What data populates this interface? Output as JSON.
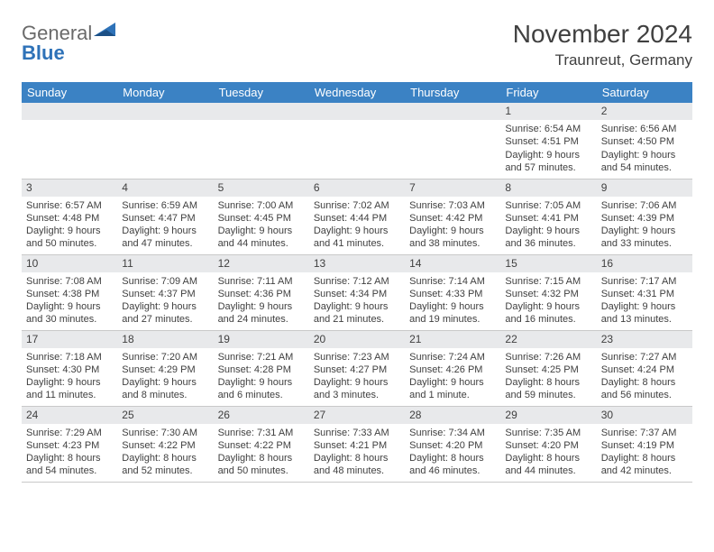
{
  "logo": {
    "text1": "General",
    "text2": "Blue"
  },
  "title": "November 2024",
  "subtitle": "Traunreut, Germany",
  "colors": {
    "header_bg": "#3b82c4",
    "header_fg": "#ffffff",
    "daynum_bg": "#e8e9eb",
    "border": "#c9c9c9",
    "text": "#404040",
    "logo_gray": "#6a6a6a",
    "logo_blue": "#2e72b8",
    "page_bg": "#ffffff"
  },
  "weekday_labels": [
    "Sunday",
    "Monday",
    "Tuesday",
    "Wednesday",
    "Thursday",
    "Friday",
    "Saturday"
  ],
  "weeks": [
    [
      null,
      null,
      null,
      null,
      null,
      {
        "n": "1",
        "sr": "Sunrise: 6:54 AM",
        "ss": "Sunset: 4:51 PM",
        "d1": "Daylight: 9 hours",
        "d2": "and 57 minutes."
      },
      {
        "n": "2",
        "sr": "Sunrise: 6:56 AM",
        "ss": "Sunset: 4:50 PM",
        "d1": "Daylight: 9 hours",
        "d2": "and 54 minutes."
      }
    ],
    [
      {
        "n": "3",
        "sr": "Sunrise: 6:57 AM",
        "ss": "Sunset: 4:48 PM",
        "d1": "Daylight: 9 hours",
        "d2": "and 50 minutes."
      },
      {
        "n": "4",
        "sr": "Sunrise: 6:59 AM",
        "ss": "Sunset: 4:47 PM",
        "d1": "Daylight: 9 hours",
        "d2": "and 47 minutes."
      },
      {
        "n": "5",
        "sr": "Sunrise: 7:00 AM",
        "ss": "Sunset: 4:45 PM",
        "d1": "Daylight: 9 hours",
        "d2": "and 44 minutes."
      },
      {
        "n": "6",
        "sr": "Sunrise: 7:02 AM",
        "ss": "Sunset: 4:44 PM",
        "d1": "Daylight: 9 hours",
        "d2": "and 41 minutes."
      },
      {
        "n": "7",
        "sr": "Sunrise: 7:03 AM",
        "ss": "Sunset: 4:42 PM",
        "d1": "Daylight: 9 hours",
        "d2": "and 38 minutes."
      },
      {
        "n": "8",
        "sr": "Sunrise: 7:05 AM",
        "ss": "Sunset: 4:41 PM",
        "d1": "Daylight: 9 hours",
        "d2": "and 36 minutes."
      },
      {
        "n": "9",
        "sr": "Sunrise: 7:06 AM",
        "ss": "Sunset: 4:39 PM",
        "d1": "Daylight: 9 hours",
        "d2": "and 33 minutes."
      }
    ],
    [
      {
        "n": "10",
        "sr": "Sunrise: 7:08 AM",
        "ss": "Sunset: 4:38 PM",
        "d1": "Daylight: 9 hours",
        "d2": "and 30 minutes."
      },
      {
        "n": "11",
        "sr": "Sunrise: 7:09 AM",
        "ss": "Sunset: 4:37 PM",
        "d1": "Daylight: 9 hours",
        "d2": "and 27 minutes."
      },
      {
        "n": "12",
        "sr": "Sunrise: 7:11 AM",
        "ss": "Sunset: 4:36 PM",
        "d1": "Daylight: 9 hours",
        "d2": "and 24 minutes."
      },
      {
        "n": "13",
        "sr": "Sunrise: 7:12 AM",
        "ss": "Sunset: 4:34 PM",
        "d1": "Daylight: 9 hours",
        "d2": "and 21 minutes."
      },
      {
        "n": "14",
        "sr": "Sunrise: 7:14 AM",
        "ss": "Sunset: 4:33 PM",
        "d1": "Daylight: 9 hours",
        "d2": "and 19 minutes."
      },
      {
        "n": "15",
        "sr": "Sunrise: 7:15 AM",
        "ss": "Sunset: 4:32 PM",
        "d1": "Daylight: 9 hours",
        "d2": "and 16 minutes."
      },
      {
        "n": "16",
        "sr": "Sunrise: 7:17 AM",
        "ss": "Sunset: 4:31 PM",
        "d1": "Daylight: 9 hours",
        "d2": "and 13 minutes."
      }
    ],
    [
      {
        "n": "17",
        "sr": "Sunrise: 7:18 AM",
        "ss": "Sunset: 4:30 PM",
        "d1": "Daylight: 9 hours",
        "d2": "and 11 minutes."
      },
      {
        "n": "18",
        "sr": "Sunrise: 7:20 AM",
        "ss": "Sunset: 4:29 PM",
        "d1": "Daylight: 9 hours",
        "d2": "and 8 minutes."
      },
      {
        "n": "19",
        "sr": "Sunrise: 7:21 AM",
        "ss": "Sunset: 4:28 PM",
        "d1": "Daylight: 9 hours",
        "d2": "and 6 minutes."
      },
      {
        "n": "20",
        "sr": "Sunrise: 7:23 AM",
        "ss": "Sunset: 4:27 PM",
        "d1": "Daylight: 9 hours",
        "d2": "and 3 minutes."
      },
      {
        "n": "21",
        "sr": "Sunrise: 7:24 AM",
        "ss": "Sunset: 4:26 PM",
        "d1": "Daylight: 9 hours",
        "d2": "and 1 minute."
      },
      {
        "n": "22",
        "sr": "Sunrise: 7:26 AM",
        "ss": "Sunset: 4:25 PM",
        "d1": "Daylight: 8 hours",
        "d2": "and 59 minutes."
      },
      {
        "n": "23",
        "sr": "Sunrise: 7:27 AM",
        "ss": "Sunset: 4:24 PM",
        "d1": "Daylight: 8 hours",
        "d2": "and 56 minutes."
      }
    ],
    [
      {
        "n": "24",
        "sr": "Sunrise: 7:29 AM",
        "ss": "Sunset: 4:23 PM",
        "d1": "Daylight: 8 hours",
        "d2": "and 54 minutes."
      },
      {
        "n": "25",
        "sr": "Sunrise: 7:30 AM",
        "ss": "Sunset: 4:22 PM",
        "d1": "Daylight: 8 hours",
        "d2": "and 52 minutes."
      },
      {
        "n": "26",
        "sr": "Sunrise: 7:31 AM",
        "ss": "Sunset: 4:22 PM",
        "d1": "Daylight: 8 hours",
        "d2": "and 50 minutes."
      },
      {
        "n": "27",
        "sr": "Sunrise: 7:33 AM",
        "ss": "Sunset: 4:21 PM",
        "d1": "Daylight: 8 hours",
        "d2": "and 48 minutes."
      },
      {
        "n": "28",
        "sr": "Sunrise: 7:34 AM",
        "ss": "Sunset: 4:20 PM",
        "d1": "Daylight: 8 hours",
        "d2": "and 46 minutes."
      },
      {
        "n": "29",
        "sr": "Sunrise: 7:35 AM",
        "ss": "Sunset: 4:20 PM",
        "d1": "Daylight: 8 hours",
        "d2": "and 44 minutes."
      },
      {
        "n": "30",
        "sr": "Sunrise: 7:37 AM",
        "ss": "Sunset: 4:19 PM",
        "d1": "Daylight: 8 hours",
        "d2": "and 42 minutes."
      }
    ]
  ]
}
